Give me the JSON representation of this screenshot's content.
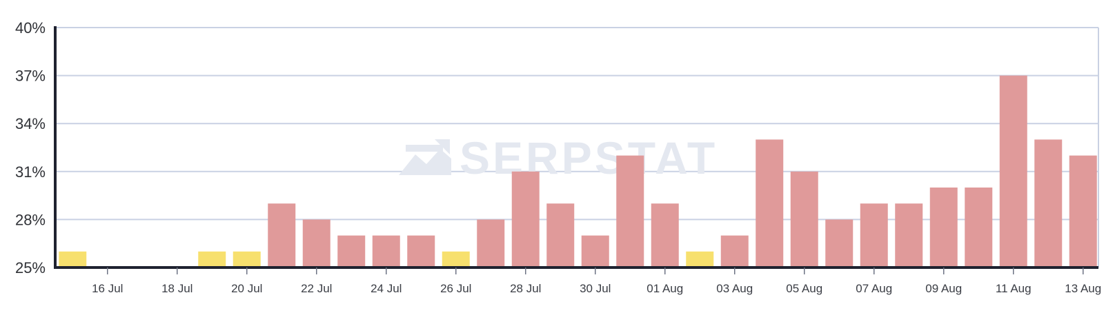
{
  "chart_data": {
    "type": "bar",
    "categories": [
      "15 Jul",
      "16 Jul",
      "17 Jul",
      "18 Jul",
      "19 Jul",
      "20 Jul",
      "21 Jul",
      "22 Jul",
      "23 Jul",
      "24 Jul",
      "25 Jul",
      "26 Jul",
      "27 Jul",
      "28 Jul",
      "29 Jul",
      "30 Jul",
      "31 Jul",
      "01 Aug",
      "02 Aug",
      "03 Aug",
      "04 Aug",
      "05 Aug",
      "06 Aug",
      "07 Aug",
      "08 Aug",
      "09 Aug",
      "10 Aug",
      "11 Aug",
      "12 Aug",
      "13 Aug"
    ],
    "values": [
      26,
      null,
      null,
      null,
      26,
      26,
      29,
      28,
      27,
      27,
      27,
      26,
      28,
      31,
      29,
      27,
      32,
      29,
      26,
      27,
      33,
      31,
      28,
      29,
      29,
      30,
      30,
      37,
      33,
      32
    ],
    "bar_colors": [
      "#f7e06e",
      "#f7e06e",
      "#f7e06e",
      "#f7e06e",
      "#f7e06e",
      "#f7e06e",
      "#e09a9a",
      "#e09a9a",
      "#e09a9a",
      "#e09a9a",
      "#e09a9a",
      "#f7e06e",
      "#e09a9a",
      "#e09a9a",
      "#e09a9a",
      "#e09a9a",
      "#e09a9a",
      "#e09a9a",
      "#f7e06e",
      "#e09a9a",
      "#e09a9a",
      "#e09a9a",
      "#e09a9a",
      "#e09a9a",
      "#e09a9a",
      "#e09a9a",
      "#e09a9a",
      "#e09a9a",
      "#e09a9a",
      "#e09a9a"
    ],
    "ylim": [
      25,
      40
    ],
    "y_ticks": [
      40,
      37,
      34,
      31,
      28,
      25
    ],
    "y_tick_labels": [
      "40%",
      "37%",
      "34%",
      "31%",
      "28%",
      "25%"
    ],
    "x_tick_labels": [
      "16 Jul",
      "18 Jul",
      "20 Jul",
      "22 Jul",
      "24 Jul",
      "26 Jul",
      "28 Jul",
      "30 Jul",
      "01 Aug",
      "03 Aug",
      "05 Aug",
      "07 Aug",
      "09 Aug",
      "11 Aug",
      "13 Aug"
    ],
    "x_tick_indices": [
      1,
      3,
      5,
      7,
      9,
      11,
      13,
      15,
      17,
      19,
      21,
      23,
      25,
      27,
      29
    ],
    "grid": true,
    "title": "",
    "xlabel": "",
    "ylabel": ""
  },
  "watermark": {
    "text": "SERPSTAT"
  },
  "colors": {
    "grid": "#c9d1e3",
    "axis": "#1f2230",
    "watermark": "#e4e8f0",
    "yellow_bar": "#f7e06e",
    "red_bar": "#e09a9a"
  }
}
